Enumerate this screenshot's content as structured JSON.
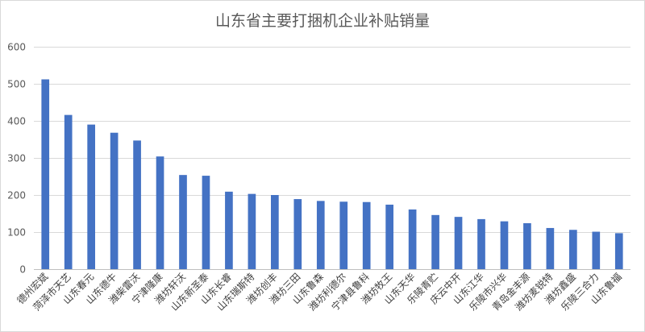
{
  "chart_data": {
    "type": "bar",
    "title": "山东省主要打捆机企业补贴销量",
    "xlabel": "",
    "ylabel": "",
    "ylim": [
      0,
      600
    ],
    "yticks": [
      0,
      100,
      200,
      300,
      400,
      500,
      600
    ],
    "grid": true,
    "legend": "none",
    "colors": {
      "bar": "#4472c4",
      "grid": "#d9d9d9",
      "text": "#595959"
    },
    "categories": [
      "德州宏斌",
      "菏泽市天艺",
      "山东春元",
      "山东德牛",
      "潍柴雷沃",
      "宁津隆康",
      "潍坊轩沃",
      "山东新圣泰",
      "山东长睿",
      "山东瑞斯特",
      "潍坊创丰",
      "潍坊三田",
      "山东鲁森",
      "潍坊利德尔",
      "宁津县鲁科",
      "潍坊牧王",
      "山东天华",
      "乐陵青贮",
      "庆云中开",
      "山东江华",
      "乐陵市兴华",
      "青岛金丰源",
      "潍坊麦锐特",
      "潍坊鑫盛",
      "乐陵三合力",
      "山东鲁福"
    ],
    "values": [
      512,
      416,
      390,
      368,
      347,
      304,
      254,
      252,
      209,
      203,
      200,
      189,
      184,
      182,
      181,
      174,
      161,
      146,
      141,
      135,
      129,
      124,
      111,
      106,
      101,
      97
    ]
  }
}
